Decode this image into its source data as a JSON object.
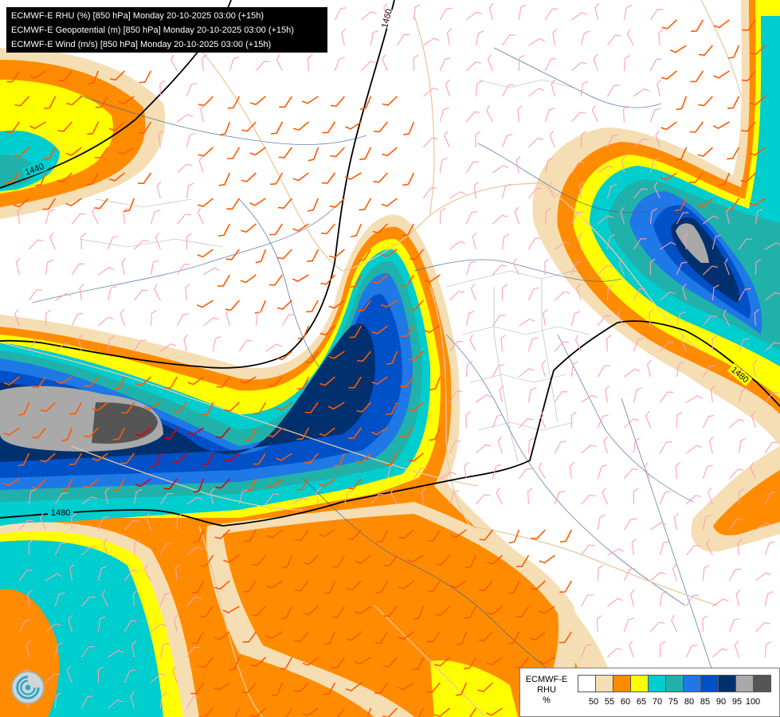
{
  "header": {
    "line1": "ECMWF-E RHU (%) [850 hPa] Monday 20-10-2025 03:00 (+15h)",
    "line2": "ECMWF-E Geopotential (m) [850 hPa] Monday 20-10-2025 03:00 (+15h)",
    "line3": "ECMWF-E Wind (m/s) [850 hPa] Monday 20-10-2025 03:00 (+15h)"
  },
  "contour_labels": {
    "a": "1460",
    "b": "1440",
    "c": "1480",
    "d": "1480"
  },
  "legend": {
    "model": "ECMWF-E",
    "variable": "RHU",
    "unit": "%",
    "colors": [
      "#ffffff",
      "#f5deb3",
      "#ff8c00",
      "#ffff00",
      "#00cdcd",
      "#20b2aa",
      "#1e78e6",
      "#0050c8",
      "#00306e",
      "#a9a9a9",
      "#555555"
    ],
    "ticks": [
      "50",
      "55",
      "60",
      "65",
      "70",
      "75",
      "80",
      "85",
      "90",
      "95",
      "100"
    ]
  },
  "logo_icon": "ecmwf-logo-icon"
}
